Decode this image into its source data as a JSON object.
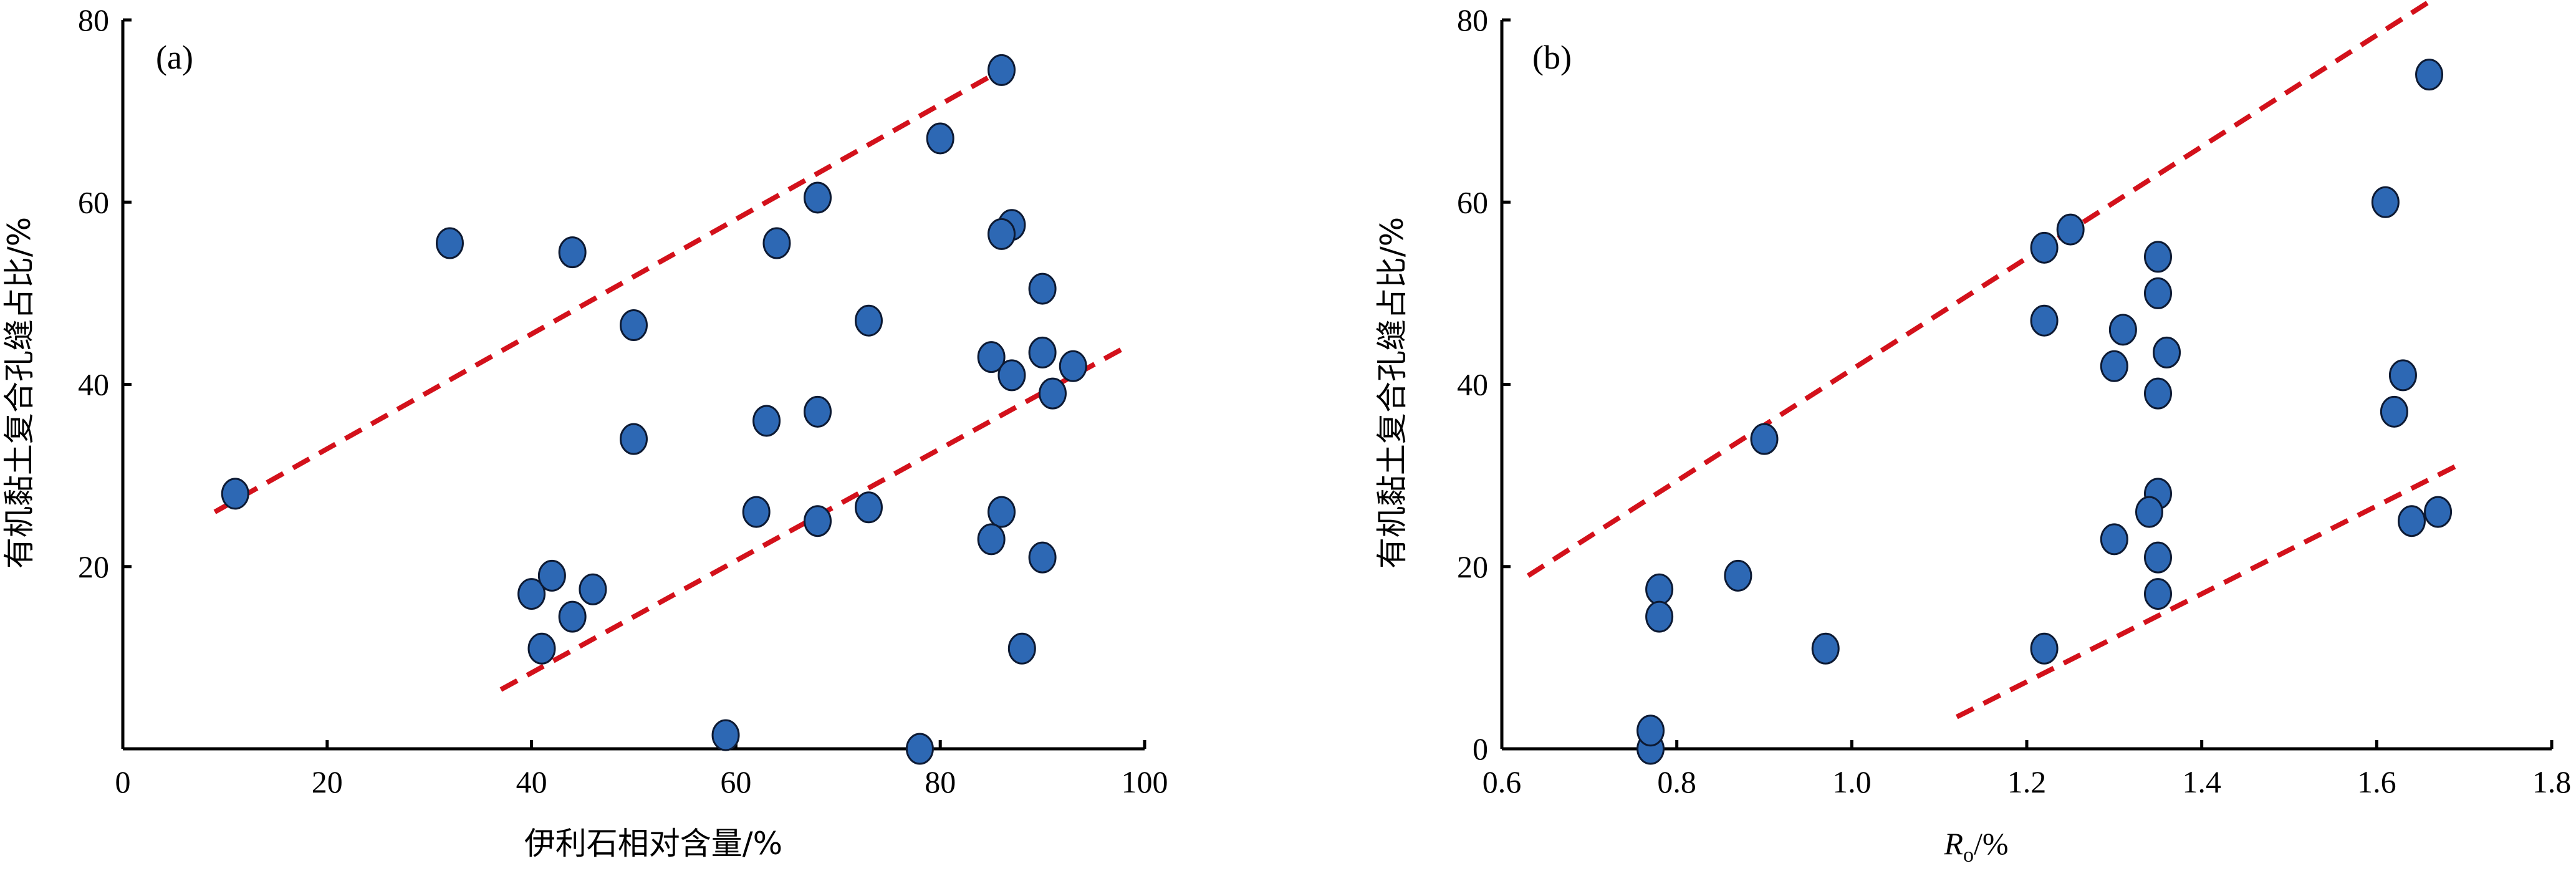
{
  "chart_data": [
    {
      "type": "scatter",
      "panel_label": "(a)",
      "title": "",
      "xlabel": "伊利石相对含量/%",
      "ylabel": "有机黏土复合孔缝占比/%",
      "xlim": [
        0,
        100
      ],
      "ylim": [
        0,
        80
      ],
      "xticks": [
        "0",
        "20",
        "40",
        "60",
        "80",
        "100"
      ],
      "yticks": [
        "20",
        "40",
        "60",
        "80"
      ],
      "grid": false,
      "marker_color": "#2d68b4",
      "line_color": "#d3111b",
      "series": [
        {
          "name": "samples",
          "points": [
            [
              11,
              28
            ],
            [
              32,
              55.5
            ],
            [
              44,
              54.5
            ],
            [
              50,
              46.5
            ],
            [
              50,
              34
            ],
            [
              40,
              17
            ],
            [
              42,
              19
            ],
            [
              46,
              17.5
            ],
            [
              44,
              14.5
            ],
            [
              41,
              11
            ],
            [
              59,
              1.5
            ],
            [
              62,
              26
            ],
            [
              63,
              36
            ],
            [
              64,
              55.5
            ],
            [
              68,
              60.5
            ],
            [
              68,
              37
            ],
            [
              68,
              25
            ],
            [
              73,
              47
            ],
            [
              73,
              26.5
            ],
            [
              78,
              0
            ],
            [
              80,
              67
            ],
            [
              86,
              74.5
            ],
            [
              87,
              57.5
            ],
            [
              86,
              56.5
            ],
            [
              90,
              50.5
            ],
            [
              85,
              43
            ],
            [
              87,
              41
            ],
            [
              90,
              43.5
            ],
            [
              93,
              42
            ],
            [
              91,
              39
            ],
            [
              86,
              26
            ],
            [
              85,
              23
            ],
            [
              90,
              21
            ],
            [
              88,
              11
            ]
          ]
        }
      ],
      "envelope_lines": [
        {
          "name": "upper-bound",
          "from": [
            9,
            26
          ],
          "to": [
            86,
            74.5
          ]
        },
        {
          "name": "lower-bound",
          "from": [
            37,
            6.5
          ],
          "to": [
            98,
            44
          ]
        }
      ]
    },
    {
      "type": "scatter",
      "panel_label": "(b)",
      "title": "",
      "xlabel_main": "R",
      "xlabel_sub": "o",
      "xlabel_suffix": "/%",
      "ylabel": "有机黏土复合孔缝占比/%",
      "xlim": [
        0.6,
        1.8
      ],
      "ylim": [
        0,
        80
      ],
      "xticks": [
        "0.6",
        "0.8",
        "1.0",
        "1.2",
        "1.4",
        "1.6",
        "1.8"
      ],
      "yticks": [
        "0",
        "20",
        "40",
        "60",
        "80"
      ],
      "grid": false,
      "marker_color": "#2d68b4",
      "line_color": "#d3111b",
      "series": [
        {
          "name": "samples",
          "points": [
            [
              0.77,
              0
            ],
            [
              0.77,
              2
            ],
            [
              0.78,
              17.5
            ],
            [
              0.78,
              14.5
            ],
            [
              0.87,
              19
            ],
            [
              0.9,
              34
            ],
            [
              0.97,
              11
            ],
            [
              1.22,
              55
            ],
            [
              1.25,
              57
            ],
            [
              1.22,
              47
            ],
            [
              1.22,
              11
            ],
            [
              1.3,
              42
            ],
            [
              1.31,
              46
            ],
            [
              1.35,
              54
            ],
            [
              1.35,
              50
            ],
            [
              1.36,
              43.5
            ],
            [
              1.35,
              39
            ],
            [
              1.35,
              28
            ],
            [
              1.34,
              26
            ],
            [
              1.3,
              23
            ],
            [
              1.35,
              21
            ],
            [
              1.35,
              17
            ],
            [
              1.61,
              60
            ],
            [
              1.66,
              74
            ],
            [
              1.63,
              41
            ],
            [
              1.62,
              37
            ],
            [
              1.64,
              25
            ],
            [
              1.67,
              26
            ]
          ]
        }
      ],
      "envelope_lines": [
        {
          "name": "upper-bound",
          "from": [
            0.63,
            19
          ],
          "to": [
            1.66,
            82
          ]
        },
        {
          "name": "lower-bound",
          "from": [
            1.12,
            3.5
          ],
          "to": [
            1.69,
            31
          ]
        }
      ]
    }
  ]
}
